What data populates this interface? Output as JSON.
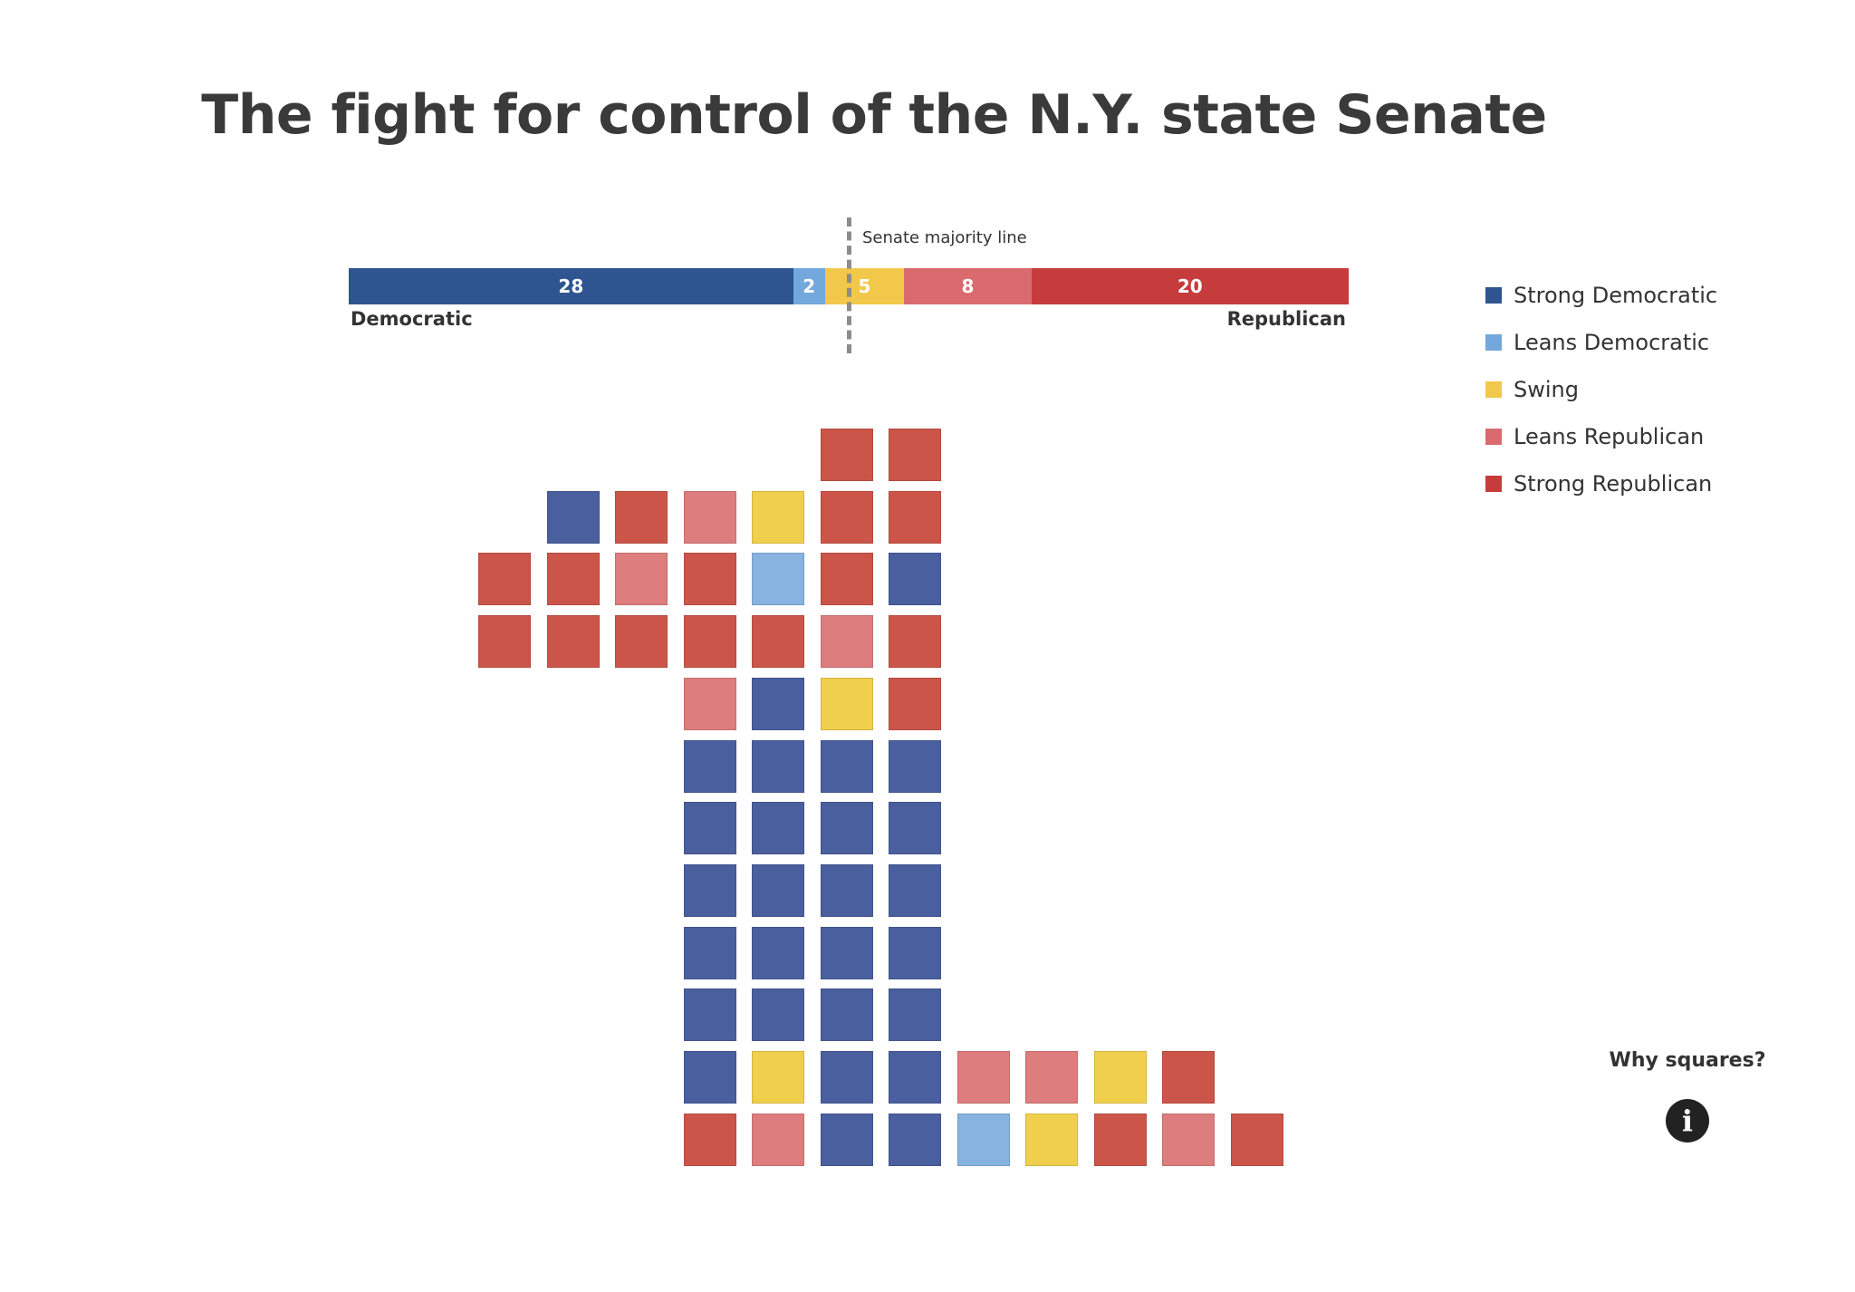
{
  "title": "The fight for control of the N.Y. state Senate",
  "majority_label": "Senate majority line",
  "bar_labels": {
    "left": "Democratic",
    "right": "Republican"
  },
  "why_squares": {
    "label": "Why squares?",
    "icon": "info-icon"
  },
  "colors": {
    "strong_dem": "#2e5590",
    "leans_dem": "#72a8dc",
    "swing": "#f2c84b",
    "leans_rep": "#d96b6f",
    "strong_rep": "#c63c3c",
    "square_strong_dem": "#4a5f9e",
    "square_leans_dem": "#86b3e0",
    "square_swing": "#f0cf4c",
    "square_leans_rep": "#de7d7d",
    "square_strong_rep": "#cc5549"
  },
  "chart_data": [
    {
      "type": "bar",
      "title": "",
      "orientation": "horizontal-stacked",
      "categories": [
        "Strong Democratic",
        "Leans Democratic",
        "Swing",
        "Leans Republican",
        "Strong Republican"
      ],
      "values": [
        28,
        2,
        5,
        8,
        20
      ],
      "total": 63,
      "legend": {
        "placement": "right",
        "items": [
          {
            "key": "strong_dem",
            "label": "Strong Democratic"
          },
          {
            "key": "leans_dem",
            "label": "Leans Democratic"
          },
          {
            "key": "swing",
            "label": "Swing"
          },
          {
            "key": "leans_rep",
            "label": "Leans Republican"
          },
          {
            "key": "strong_rep",
            "label": "Strong Republican"
          }
        ]
      }
    },
    {
      "type": "heatmap",
      "title": "",
      "description_units": "grid of district squares (row, column)",
      "cells": [
        {
          "row": 0,
          "col": 5,
          "rating": "strong_rep"
        },
        {
          "row": 0,
          "col": 6,
          "rating": "strong_rep"
        },
        {
          "row": 1,
          "col": 1,
          "rating": "strong_dem"
        },
        {
          "row": 1,
          "col": 2,
          "rating": "strong_rep"
        },
        {
          "row": 1,
          "col": 3,
          "rating": "leans_rep"
        },
        {
          "row": 1,
          "col": 4,
          "rating": "swing"
        },
        {
          "row": 1,
          "col": 5,
          "rating": "strong_rep"
        },
        {
          "row": 1,
          "col": 6,
          "rating": "strong_rep"
        },
        {
          "row": 2,
          "col": 0,
          "rating": "strong_rep"
        },
        {
          "row": 2,
          "col": 1,
          "rating": "strong_rep"
        },
        {
          "row": 2,
          "col": 2,
          "rating": "leans_rep"
        },
        {
          "row": 2,
          "col": 3,
          "rating": "strong_rep"
        },
        {
          "row": 2,
          "col": 4,
          "rating": "leans_dem"
        },
        {
          "row": 2,
          "col": 5,
          "rating": "strong_rep"
        },
        {
          "row": 2,
          "col": 6,
          "rating": "strong_dem"
        },
        {
          "row": 3,
          "col": 0,
          "rating": "strong_rep"
        },
        {
          "row": 3,
          "col": 1,
          "rating": "strong_rep"
        },
        {
          "row": 3,
          "col": 2,
          "rating": "strong_rep"
        },
        {
          "row": 3,
          "col": 3,
          "rating": "strong_rep"
        },
        {
          "row": 3,
          "col": 4,
          "rating": "strong_rep"
        },
        {
          "row": 3,
          "col": 5,
          "rating": "leans_rep"
        },
        {
          "row": 3,
          "col": 6,
          "rating": "strong_rep"
        },
        {
          "row": 4,
          "col": 3,
          "rating": "leans_rep"
        },
        {
          "row": 4,
          "col": 4,
          "rating": "strong_dem"
        },
        {
          "row": 4,
          "col": 5,
          "rating": "swing"
        },
        {
          "row": 4,
          "col": 6,
          "rating": "strong_rep"
        },
        {
          "row": 5,
          "col": 3,
          "rating": "strong_dem"
        },
        {
          "row": 5,
          "col": 4,
          "rating": "strong_dem"
        },
        {
          "row": 5,
          "col": 5,
          "rating": "strong_dem"
        },
        {
          "row": 5,
          "col": 6,
          "rating": "strong_dem"
        },
        {
          "row": 6,
          "col": 3,
          "rating": "strong_dem"
        },
        {
          "row": 6,
          "col": 4,
          "rating": "strong_dem"
        },
        {
          "row": 6,
          "col": 5,
          "rating": "strong_dem"
        },
        {
          "row": 6,
          "col": 6,
          "rating": "strong_dem"
        },
        {
          "row": 7,
          "col": 3,
          "rating": "strong_dem"
        },
        {
          "row": 7,
          "col": 4,
          "rating": "strong_dem"
        },
        {
          "row": 7,
          "col": 5,
          "rating": "strong_dem"
        },
        {
          "row": 7,
          "col": 6,
          "rating": "strong_dem"
        },
        {
          "row": 8,
          "col": 3,
          "rating": "strong_dem"
        },
        {
          "row": 8,
          "col": 4,
          "rating": "strong_dem"
        },
        {
          "row": 8,
          "col": 5,
          "rating": "strong_dem"
        },
        {
          "row": 8,
          "col": 6,
          "rating": "strong_dem"
        },
        {
          "row": 9,
          "col": 3,
          "rating": "strong_dem"
        },
        {
          "row": 9,
          "col": 4,
          "rating": "strong_dem"
        },
        {
          "row": 9,
          "col": 5,
          "rating": "strong_dem"
        },
        {
          "row": 9,
          "col": 6,
          "rating": "strong_dem"
        },
        {
          "row": 10,
          "col": 3,
          "rating": "strong_dem"
        },
        {
          "row": 10,
          "col": 4,
          "rating": "swing"
        },
        {
          "row": 10,
          "col": 5,
          "rating": "strong_dem"
        },
        {
          "row": 10,
          "col": 6,
          "rating": "strong_dem"
        },
        {
          "row": 10,
          "col": 7,
          "rating": "leans_rep"
        },
        {
          "row": 10,
          "col": 8,
          "rating": "leans_rep"
        },
        {
          "row": 10,
          "col": 9,
          "rating": "swing"
        },
        {
          "row": 10,
          "col": 10,
          "rating": "strong_rep"
        },
        {
          "row": 11,
          "col": 3,
          "rating": "strong_rep"
        },
        {
          "row": 11,
          "col": 4,
          "rating": "leans_rep"
        },
        {
          "row": 11,
          "col": 5,
          "rating": "strong_dem"
        },
        {
          "row": 11,
          "col": 6,
          "rating": "strong_dem"
        },
        {
          "row": 11,
          "col": 7,
          "rating": "leans_dem"
        },
        {
          "row": 11,
          "col": 8,
          "rating": "swing"
        },
        {
          "row": 11,
          "col": 9,
          "rating": "strong_rep"
        },
        {
          "row": 11,
          "col": 10,
          "rating": "leans_rep"
        },
        {
          "row": 11,
          "col": 11,
          "rating": "strong_rep"
        }
      ]
    }
  ]
}
